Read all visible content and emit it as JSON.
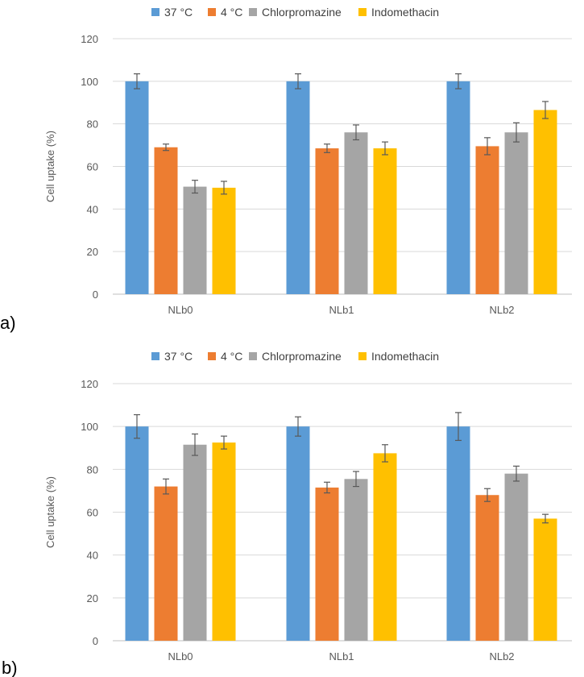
{
  "chart_data": [
    {
      "type": "bar",
      "panel_label": "a)",
      "categories": [
        "NLb0",
        "NLb1",
        "NLb2"
      ],
      "series": [
        {
          "name": "37 °C",
          "color": "#5b9bd5",
          "values": [
            100,
            100,
            100
          ],
          "errors": [
            3.5,
            3.5,
            3.5
          ]
        },
        {
          "name": "4 °C",
          "color": "#ed7d31",
          "values": [
            69,
            68.5,
            69.5
          ],
          "errors": [
            1.5,
            2,
            4
          ]
        },
        {
          "name": "Chlorpromazine",
          "color": "#a5a5a5",
          "values": [
            50.5,
            76,
            76
          ],
          "errors": [
            3,
            3.5,
            4.5
          ]
        },
        {
          "name": "Indomethacin",
          "color": "#ffc000",
          "values": [
            50,
            68.5,
            86.5
          ],
          "errors": [
            3,
            3,
            4
          ]
        }
      ],
      "xlabel": "",
      "ylabel": "Cell uptake (%)",
      "ylim": [
        0,
        120
      ],
      "yticks": [
        "0",
        "20",
        "40",
        "60",
        "80",
        "100",
        "120"
      ],
      "legend_position": "top-center",
      "grid": true
    },
    {
      "type": "bar",
      "panel_label": "b)",
      "categories": [
        "NLb0",
        "NLb1",
        "NLb2"
      ],
      "series": [
        {
          "name": "37 °C",
          "color": "#5b9bd5",
          "values": [
            100,
            100,
            100
          ],
          "errors": [
            5.5,
            4.5,
            6.5
          ]
        },
        {
          "name": "4 °C",
          "color": "#ed7d31",
          "values": [
            72,
            71.5,
            68
          ],
          "errors": [
            3.5,
            2.5,
            3
          ]
        },
        {
          "name": "Chlorpromazine",
          "color": "#a5a5a5",
          "values": [
            91.5,
            75.5,
            78
          ],
          "errors": [
            5,
            3.5,
            3.5
          ]
        },
        {
          "name": "Indomethacin",
          "color": "#ffc000",
          "values": [
            92.5,
            87.5,
            57
          ],
          "errors": [
            3,
            4,
            2
          ]
        }
      ],
      "xlabel": "",
      "ylabel": "Cell uptake (%)",
      "ylim": [
        0,
        120
      ],
      "yticks": [
        "0",
        "20",
        "40",
        "60",
        "80",
        "100",
        "120"
      ],
      "legend_position": "top-center",
      "grid": true
    }
  ]
}
